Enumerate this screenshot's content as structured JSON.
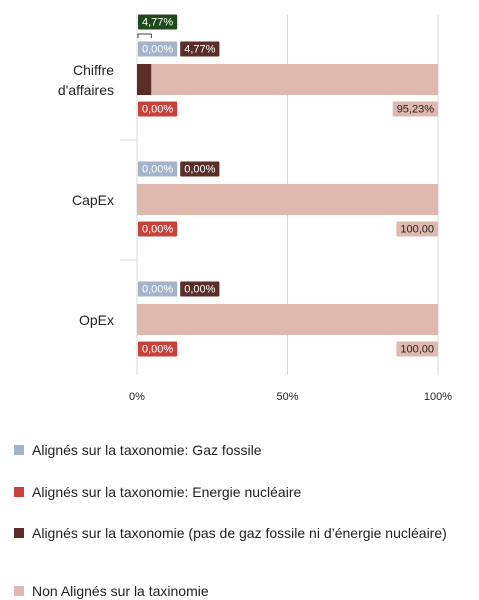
{
  "chart_data": {
    "type": "stacked-barh",
    "categories": [
      "Chiffre d'affaires",
      "CapEx",
      "OpEx"
    ],
    "series": [
      {
        "name": "Alignés sur la taxonomie: Gaz fossile",
        "color": "#a3b3c9",
        "values": [
          0,
          0,
          0
        ],
        "value_labels": [
          "0,00%",
          "0,00%",
          "0,00%"
        ]
      },
      {
        "name": "Alignés sur la taxonomie: Energie nucléaire",
        "color": "#c8423c",
        "values": [
          0,
          0,
          0
        ],
        "value_labels": [
          "0,00%",
          "0,00%",
          "0,00%"
        ]
      },
      {
        "name": "Alignés sur la taxonomie (pas de gaz fossile ni d’énergie nucléaire)",
        "color": "#5a2d28",
        "values": [
          4.77,
          0,
          0
        ],
        "value_labels": [
          "4,77%",
          "0,00%",
          "0,00%"
        ]
      },
      {
        "name": "Non Alignés sur la taxinomie",
        "color": "#dfb9af",
        "values": [
          95.23,
          100,
          100
        ],
        "value_labels": [
          "95,23%",
          "100,00",
          "100,00"
        ]
      }
    ],
    "annotations": [
      {
        "label": "4,77%",
        "value": 4.77,
        "color": "#1d4a1d"
      }
    ],
    "xlim": [
      0,
      100
    ],
    "xticks": [
      {
        "value": 0,
        "label": "0%"
      },
      {
        "value": 50,
        "label": "50%"
      },
      {
        "value": 100,
        "label": "100%"
      }
    ],
    "grid": true
  }
}
